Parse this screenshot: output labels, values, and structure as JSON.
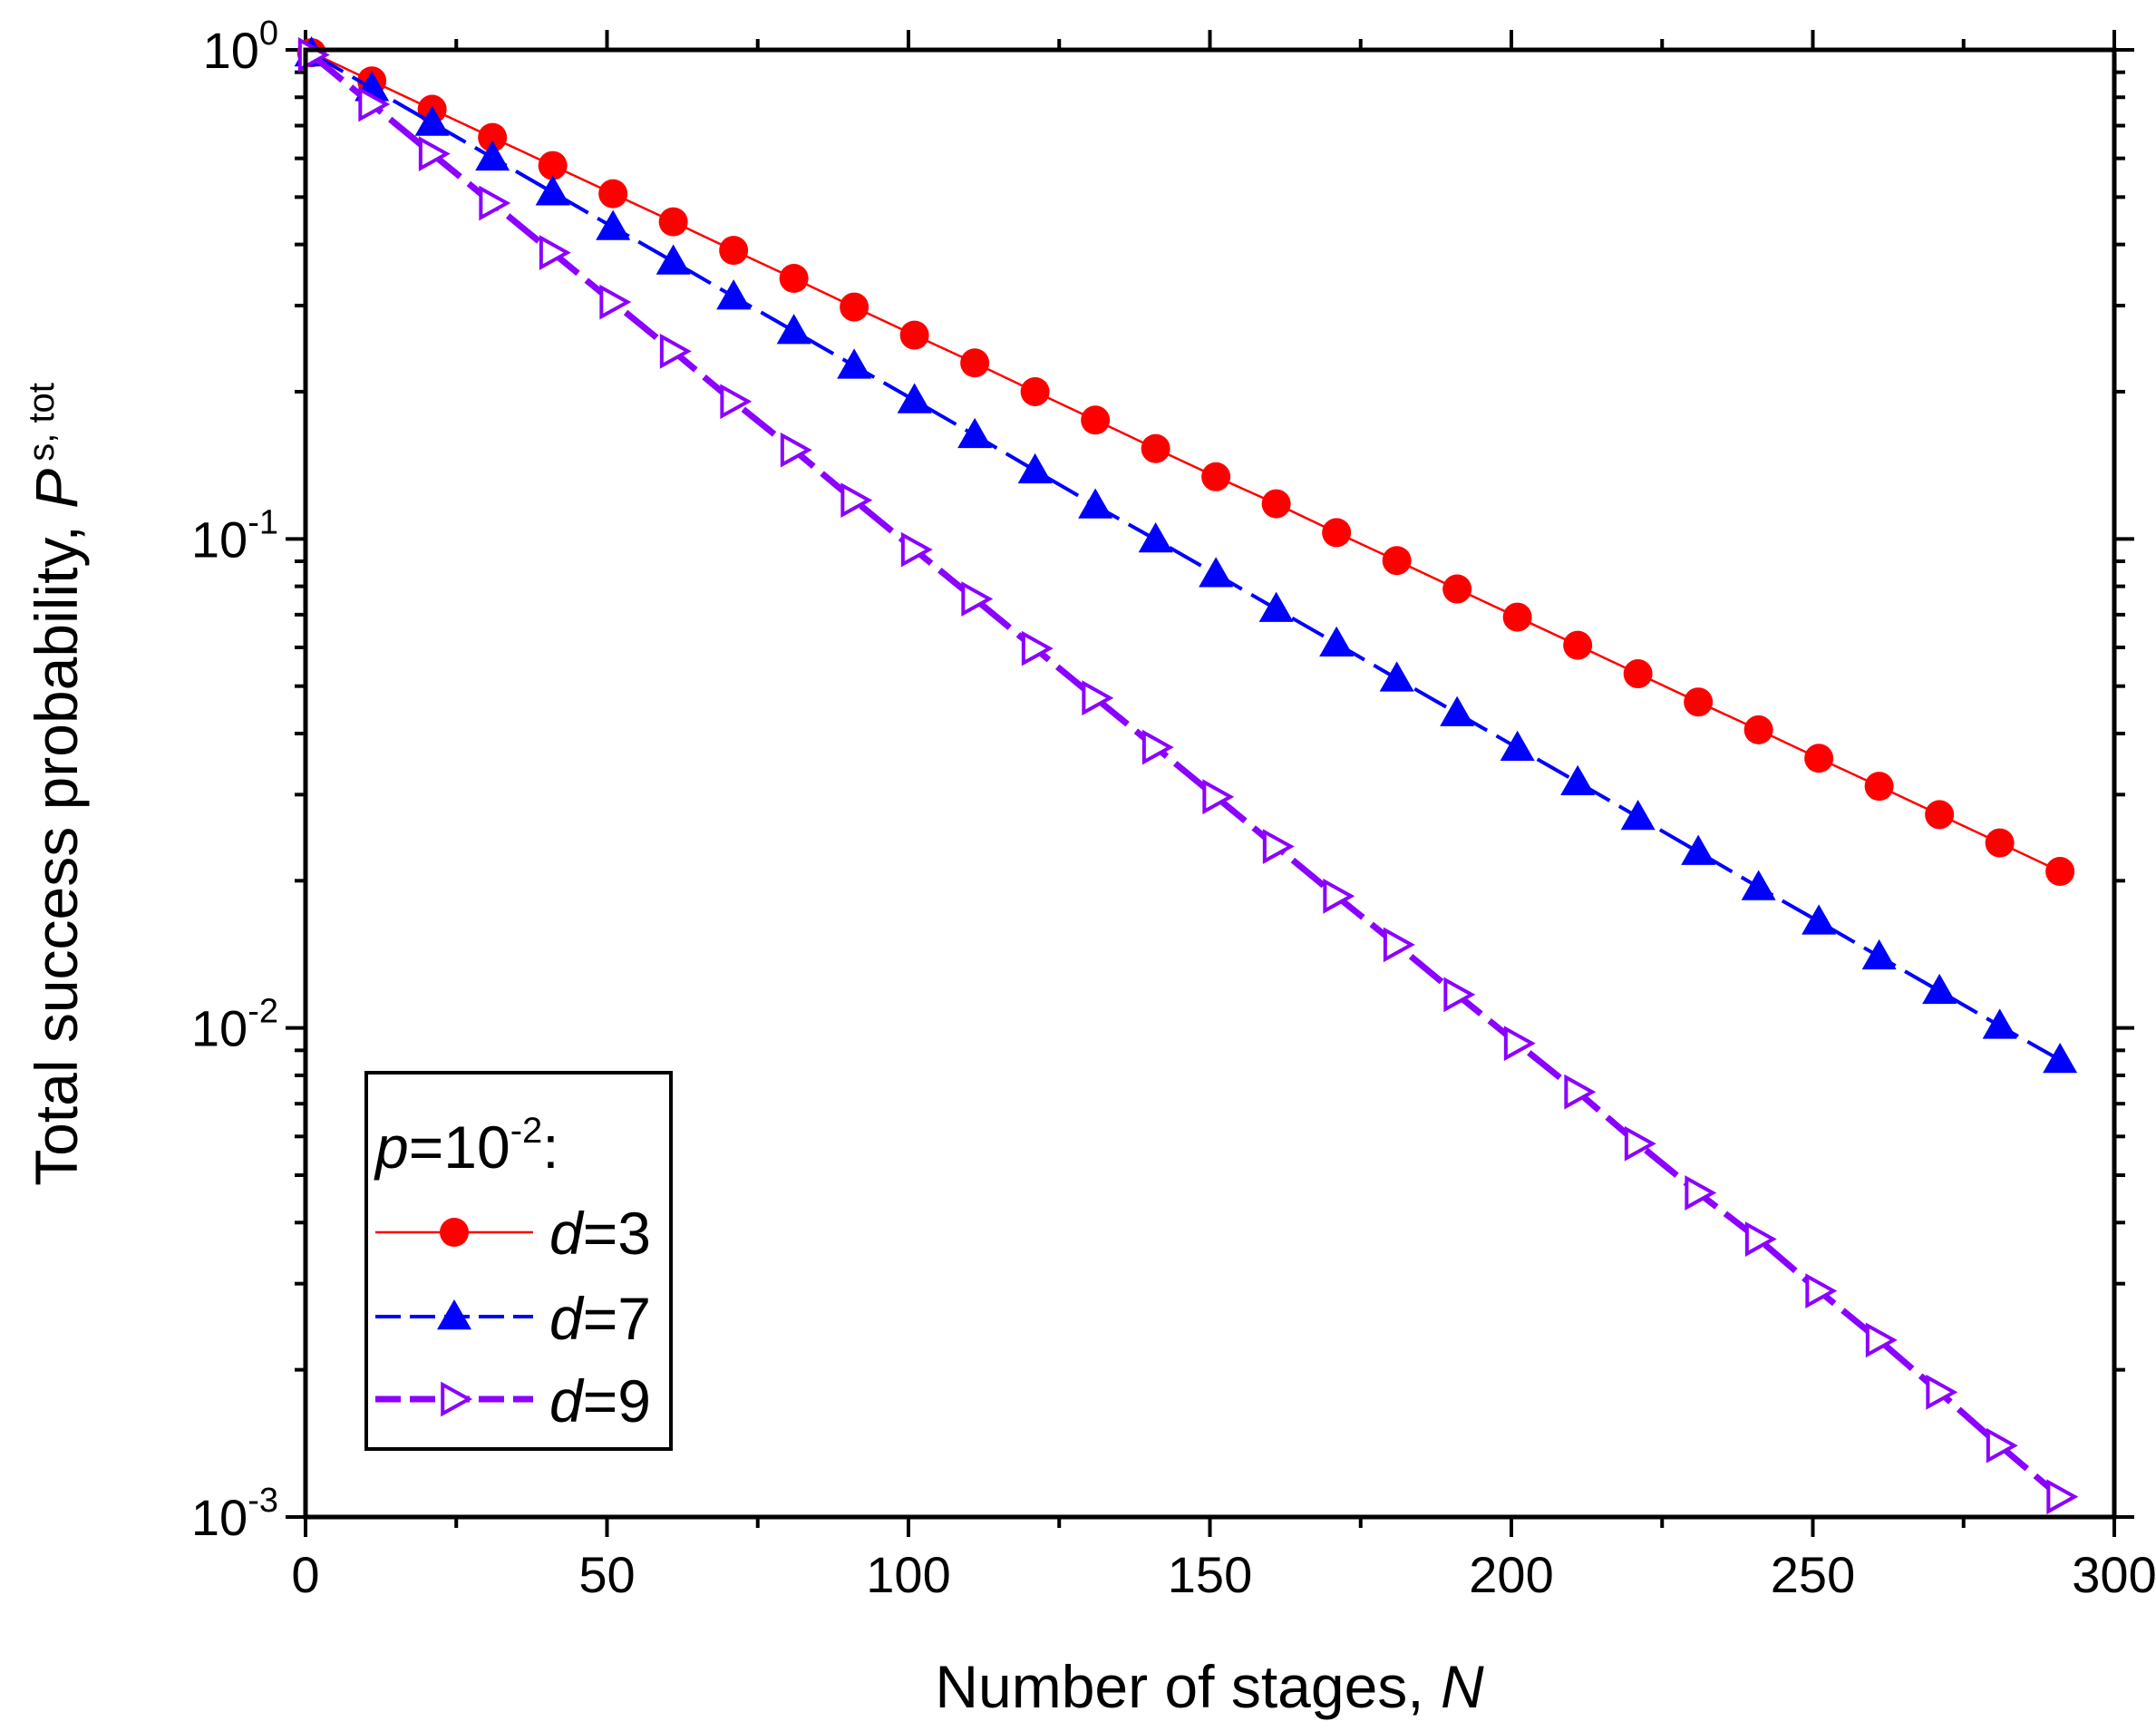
{
  "chart_data": {
    "type": "line",
    "xlabel": {
      "text": "Number of stages, ",
      "var": "N"
    },
    "ylabel": {
      "text": "Total success probability, ",
      "var": "P",
      "sub": "s, tot"
    },
    "x_scale": "linear",
    "y_scale": "log",
    "xlim": [
      0,
      300
    ],
    "ylim": [
      0.001,
      1
    ],
    "x_ticks": [
      0,
      50,
      100,
      150,
      200,
      250,
      300
    ],
    "x_tick_labels": [
      "0",
      "50",
      "100",
      "150",
      "200",
      "250",
      "300"
    ],
    "y_ticks": [
      {
        "value": 1,
        "base": "10",
        "exp": "0"
      },
      {
        "value": 0.1,
        "base": "10",
        "exp": "-1"
      },
      {
        "value": 0.01,
        "base": "10",
        "exp": "-2"
      },
      {
        "value": 0.001,
        "base": "10",
        "exp": "-3"
      }
    ],
    "legend": {
      "title_var": "p",
      "title_rest": "=10",
      "title_exp": "-2",
      "title_suffix": ":",
      "position": "bottom-left"
    },
    "series": [
      {
        "name": "d=3",
        "label_var": "d",
        "label_rest": "=3",
        "color": "#ff0000",
        "marker": "circle",
        "line": "solid-thin",
        "x": [
          1,
          11,
          21,
          31,
          41,
          51,
          61,
          71,
          81,
          91,
          101,
          111,
          121,
          131,
          141,
          151,
          161,
          171,
          181,
          191,
          201,
          211,
          221,
          231,
          241,
          251,
          261,
          271,
          281,
          291
        ],
        "y": [
          0.987,
          0.864,
          0.756,
          0.662,
          0.58,
          0.508,
          0.445,
          0.389,
          0.341,
          0.298,
          0.261,
          0.229,
          0.2,
          0.175,
          0.153,
          0.134,
          0.118,
          0.103,
          0.0903,
          0.079,
          0.0692,
          0.0606,
          0.053,
          0.0464,
          0.0407,
          0.0356,
          0.0312,
          0.0273,
          0.0239,
          0.0209
        ]
      },
      {
        "name": "d=7",
        "label_var": "d",
        "label_rest": "=7",
        "color": "#0000ff",
        "marker": "triangle-up",
        "line": "dash",
        "x": [
          1,
          11,
          21,
          31,
          41,
          51,
          61,
          71,
          81,
          91,
          101,
          111,
          121,
          131,
          141,
          151,
          161,
          171,
          181,
          191,
          201,
          211,
          221,
          231,
          241,
          251,
          261,
          271,
          281,
          291
        ],
        "y": [
          0.983,
          0.835,
          0.709,
          0.602,
          0.511,
          0.434,
          0.369,
          0.313,
          0.266,
          0.226,
          0.192,
          0.163,
          0.138,
          0.117,
          0.0997,
          0.0847,
          0.0719,
          0.0611,
          0.0518,
          0.044,
          0.0374,
          0.0318,
          0.027,
          0.0229,
          0.0194,
          0.0165,
          0.014,
          0.0119,
          0.0101,
          0.0086
        ]
      },
      {
        "name": "d=9",
        "label_var": "d",
        "label_rest": "=9",
        "color": "#8b00ff",
        "marker": "triangle-right-open",
        "line": "dash-thick",
        "x": [
          1,
          11,
          21,
          31,
          41,
          51,
          61,
          71,
          81,
          91,
          101,
          111,
          121,
          131,
          141,
          151,
          161,
          171,
          181,
          191,
          201,
          211,
          221,
          231,
          241,
          251,
          261,
          271,
          281,
          291
        ],
        "y": [
          0.977,
          0.774,
          0.613,
          0.486,
          0.385,
          0.305,
          0.242,
          0.191,
          0.152,
          0.12,
          0.0951,
          0.0754,
          0.0597,
          0.0473,
          0.0375,
          0.0297,
          0.0235,
          0.0186,
          0.0148,
          0.0117,
          0.0093,
          0.0074,
          0.0058,
          0.0046,
          0.0037,
          0.0029,
          0.0023,
          0.0018,
          0.0014,
          0.0011
        ]
      }
    ]
  }
}
